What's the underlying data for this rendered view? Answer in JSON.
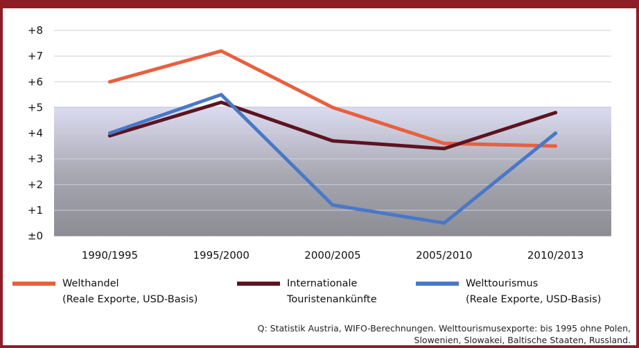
{
  "chart_data": {
    "type": "line",
    "title": "",
    "categories": [
      "1990/1995",
      "1995/2000",
      "2000/2005",
      "2005/2010",
      "2010/2013"
    ],
    "y_tick_labels": [
      "±0",
      "+1",
      "+2",
      "+3",
      "+4",
      "+5",
      "+6",
      "+7",
      "+8"
    ],
    "ylim": [
      0,
      8
    ],
    "grid": true,
    "legend_position": "bottom",
    "series": [
      {
        "name_line1": "Welthandel",
        "name_line2": "(Reale Exporte, USD-Basis)",
        "color": "#e8603f",
        "values": [
          6.0,
          7.2,
          5.0,
          3.6,
          3.5
        ]
      },
      {
        "name_line1": "Internationale",
        "name_line2": "Touristenankünfte",
        "color": "#5c1420",
        "values": [
          3.9,
          5.2,
          3.7,
          3.4,
          4.8
        ]
      },
      {
        "name_line1": "Welttourismus",
        "name_line2": "(Reale Exporte, USD-Basis)",
        "color": "#4a78c8",
        "values": [
          4.0,
          5.5,
          1.2,
          0.5,
          4.0
        ]
      }
    ],
    "source_line1": "Q: Statistik Austria, WIFO-Berechnungen. Welttourismusexporte: bis 1995 ohne Polen,",
    "source_line2": "Slowenien, Slowakei, Baltische Staaten, Russland."
  }
}
